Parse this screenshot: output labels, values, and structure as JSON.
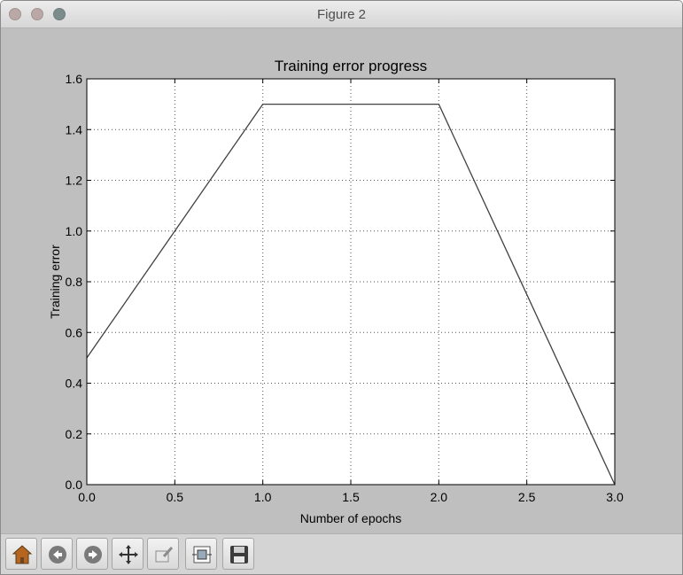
{
  "window": {
    "title": "Figure 2"
  },
  "toolbar": {
    "buttons": [
      {
        "name": "home-button",
        "icon": "home-icon"
      },
      {
        "name": "back-button",
        "icon": "back-arrow-icon"
      },
      {
        "name": "forward-button",
        "icon": "forward-arrow-icon"
      },
      {
        "name": "pan-button",
        "icon": "pan-move-icon"
      },
      {
        "name": "zoom-button",
        "icon": "zoom-rect-icon"
      },
      {
        "name": "configure-subplots-button",
        "icon": "subplots-icon"
      },
      {
        "name": "save-button",
        "icon": "save-disk-icon"
      }
    ]
  },
  "chart_data": {
    "type": "line",
    "title": "Training error progress",
    "xlabel": "Number of epochs",
    "ylabel": "Training error",
    "xlim": [
      0.0,
      3.0
    ],
    "ylim": [
      0.0,
      1.6
    ],
    "xticks": [
      "0.0",
      "0.5",
      "1.0",
      "1.5",
      "2.0",
      "2.5",
      "3.0"
    ],
    "yticks": [
      "0.0",
      "0.2",
      "0.4",
      "0.6",
      "0.8",
      "1.0",
      "1.2",
      "1.4",
      "1.6"
    ],
    "grid": true,
    "series": [
      {
        "x": [
          0.0,
          1.0,
          2.0,
          3.0
        ],
        "y": [
          0.5,
          1.5,
          1.5,
          0.0
        ],
        "color": "#404040"
      }
    ]
  }
}
